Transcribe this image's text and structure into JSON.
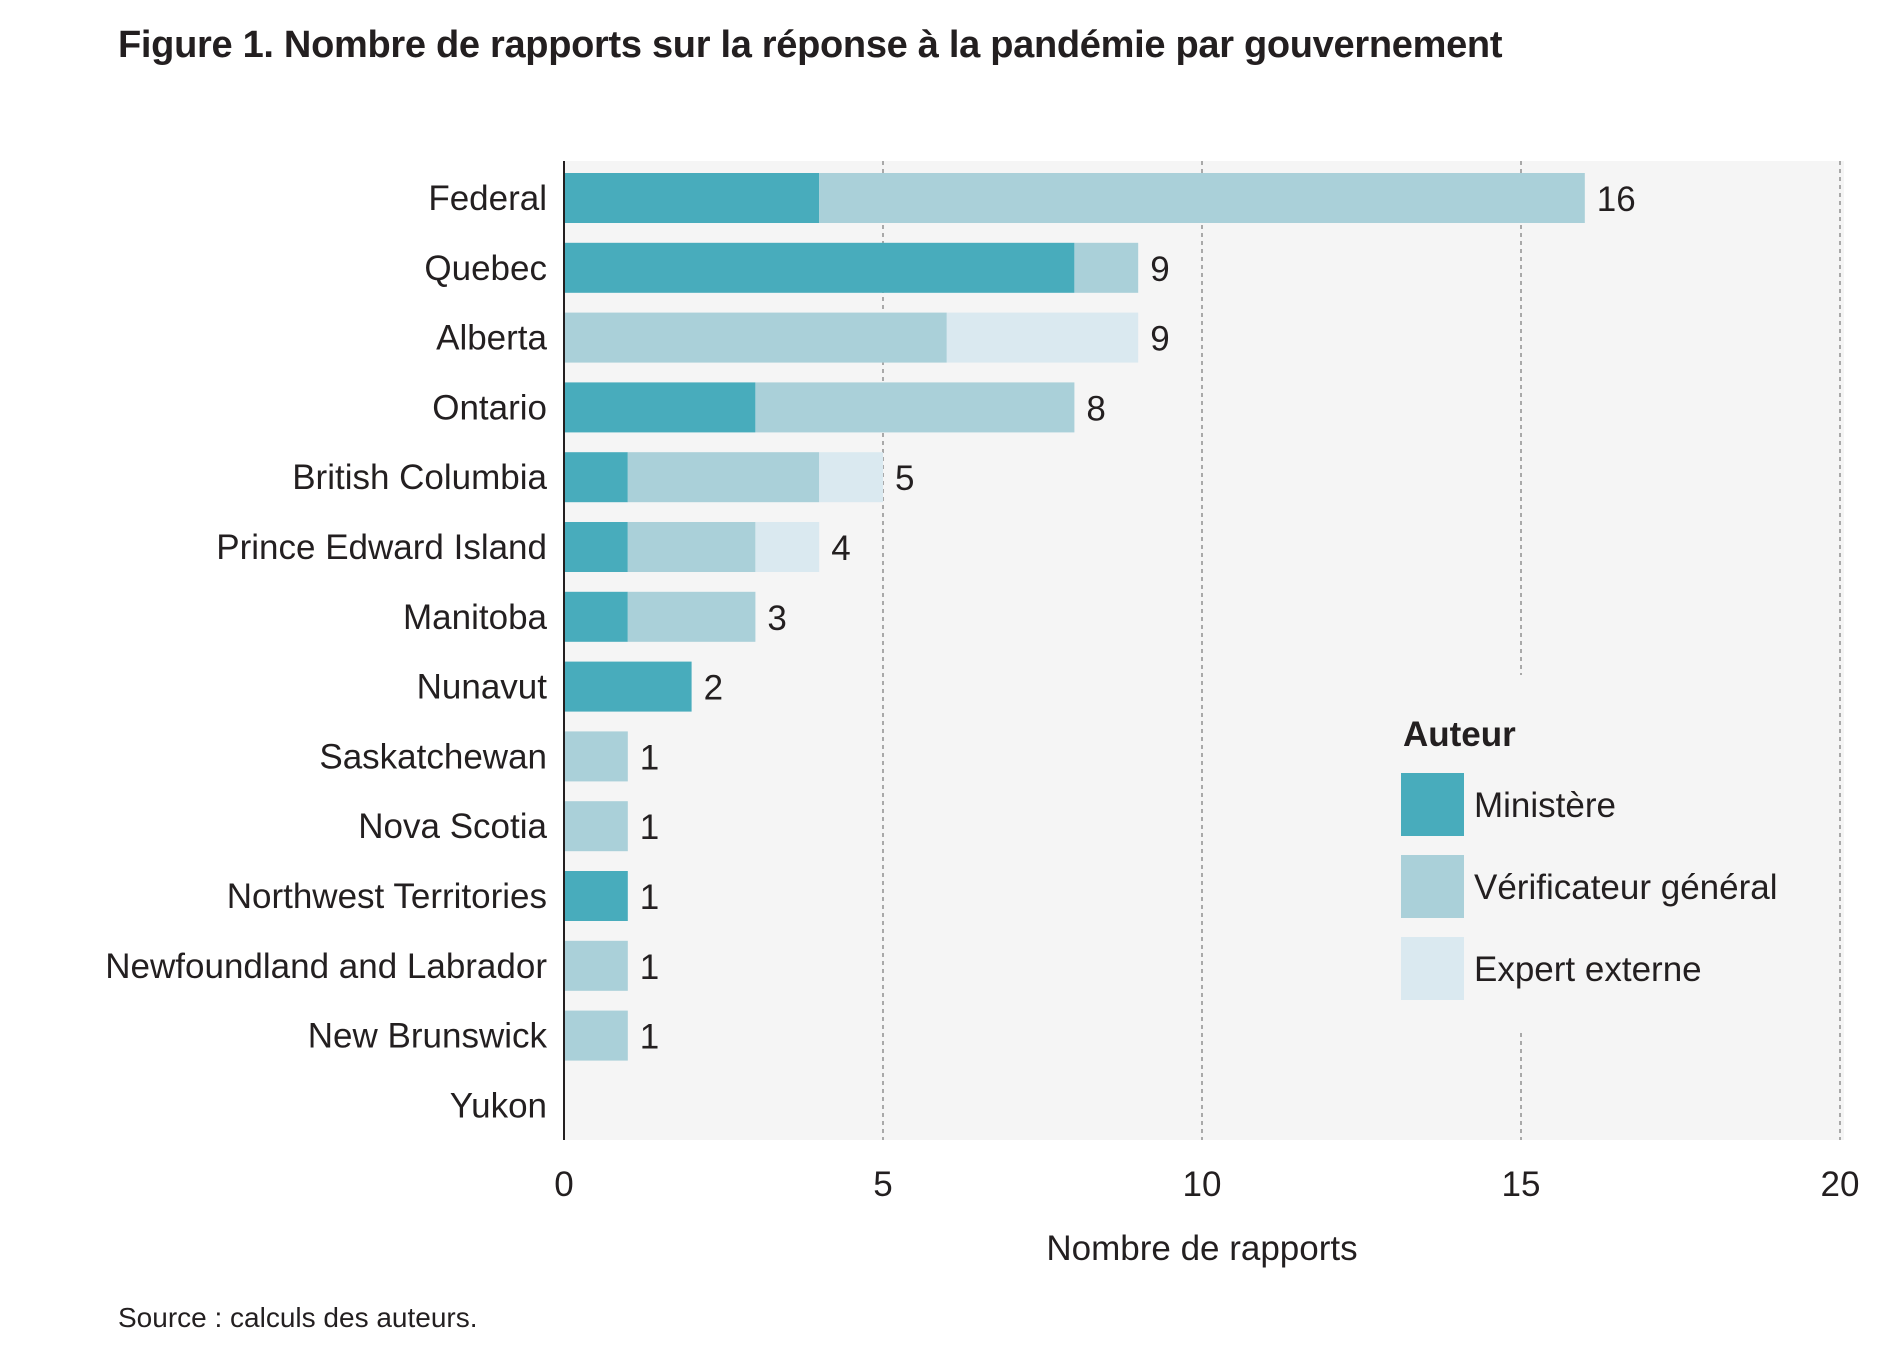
{
  "header": {
    "title": "Figure 1. Nombre de rapports sur la réponse à la pandémie par gouvernement"
  },
  "footer": {
    "source": "Source : calculs des auteurs."
  },
  "colors": {
    "ministere": "#48ACBC",
    "verificateur": "#AAD0D9",
    "expert": "#DAE9F0",
    "plot_background": "#F5F5F5",
    "gridline": "#A9A9A9",
    "axis": "#231F20"
  },
  "chart_data": {
    "type": "bar",
    "orientation": "horizontal",
    "stacked": true,
    "title": "Figure 1. Nombre de rapports sur la réponse à la pandémie par gouvernement",
    "xlabel": "Nombre de rapports",
    "ylabel": "",
    "xlim": [
      0,
      20
    ],
    "xticks": [
      0,
      5,
      10,
      15,
      20
    ],
    "grid": "vertical dashed",
    "categories": [
      "Federal",
      "Quebec",
      "Alberta",
      "Ontario",
      "British Columbia",
      "Prince Edward Island",
      "Manitoba",
      "Nunavut",
      "Saskatchewan",
      "Nova Scotia",
      "Northwest Territories",
      "Newfoundland and Labrador",
      "New Brunswick",
      "Yukon"
    ],
    "series": [
      {
        "name": "Ministère",
        "color": "#48ACBC",
        "values": [
          4,
          8,
          0,
          3,
          1,
          1,
          1,
          2,
          0,
          0,
          1,
          0,
          0,
          0
        ]
      },
      {
        "name": "Vérificateur général",
        "color": "#AAD0D9",
        "values": [
          12,
          1,
          6,
          5,
          3,
          2,
          2,
          0,
          1,
          1,
          0,
          1,
          1,
          0
        ]
      },
      {
        "name": "Expert externe",
        "color": "#DAE9F0",
        "values": [
          0,
          0,
          3,
          0,
          1,
          1,
          0,
          0,
          0,
          0,
          0,
          0,
          0,
          0
        ]
      }
    ],
    "totals": [
      16,
      9,
      9,
      8,
      5,
      4,
      3,
      2,
      1,
      1,
      1,
      1,
      1,
      null
    ],
    "legend": {
      "title": "Auteur",
      "position": "bottom-right, inside plot"
    },
    "source": "Source : calculs des auteurs."
  }
}
